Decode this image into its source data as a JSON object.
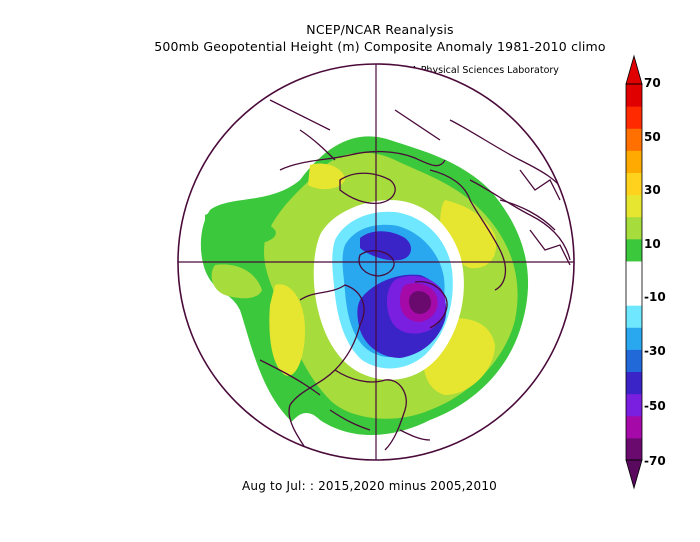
{
  "title_line1": "NCEP/NCAR Reanalysis",
  "title_line2": "500mb Geopotential Height (m) Composite Anomaly 1981-2010 climo",
  "credit": "NOAA Physical Sciences Laboratory",
  "footer": "Aug to Jul: : 2015,2020 minus 2005,2010",
  "colorbar": {
    "labels": [
      "70",
      "50",
      "30",
      "10",
      "-10",
      "-30",
      "-50",
      "-70"
    ],
    "colors": [
      "#6a0a6e",
      "#a50aa8",
      "#7a1fe0",
      "#3a24c8",
      "#2168d8",
      "#29a8f0",
      "#6fe8ff",
      "#ffffff",
      "#ffffff",
      "#3cc83c",
      "#a6dc3c",
      "#e6e630",
      "#ffd21e",
      "#ffaa00",
      "#ff7000",
      "#ff2a00",
      "#e00000"
    ]
  }
}
